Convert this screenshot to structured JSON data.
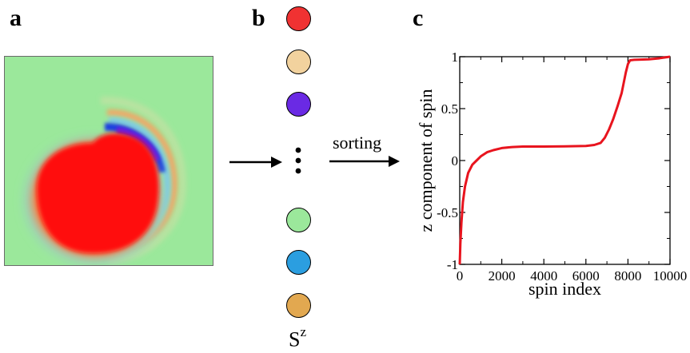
{
  "labels": {
    "a": "a",
    "b": "b",
    "c": "c"
  },
  "middle": {
    "sorting": "sorting",
    "spin_label_base": "S",
    "spin_label_sup": "z",
    "spins": [
      {
        "color": "#f03232"
      },
      {
        "color": "#f2d29e"
      },
      {
        "color": "#6a2ae4"
      },
      {
        "color": "#9be89b"
      },
      {
        "color": "#2b9ee0"
      },
      {
        "color": "#e2a850"
      }
    ]
  },
  "colors": {
    "line": "#e8141e",
    "map_background": "#9be89b"
  },
  "chart_data": {
    "type": "line",
    "title": "",
    "xlabel": "spin index",
    "ylabel": "z component of spin",
    "xlim": [
      0,
      10000
    ],
    "ylim": [
      -1,
      1
    ],
    "xticks": [
      0,
      2000,
      4000,
      6000,
      8000,
      10000
    ],
    "xtick_labels": [
      "0",
      "2000",
      "4000",
      "6000",
      "8000",
      "10000"
    ],
    "yticks": [
      -1,
      -0.5,
      0,
      0.5,
      1
    ],
    "ytick_labels": [
      "-1",
      "-0.5",
      "0",
      "0.5",
      "1"
    ],
    "grid": false,
    "series": [
      {
        "x": [
          0,
          30,
          80,
          150,
          250,
          400,
          600,
          800,
          1000,
          1300,
          1600,
          2000,
          2500,
          3000,
          4000,
          5000,
          6000,
          6400,
          6700,
          6900,
          7100,
          7300,
          7500,
          7700,
          7800,
          7900,
          8000,
          8100,
          8300,
          8600,
          9000,
          9500,
          10000
        ],
        "y": [
          -1,
          -0.8,
          -0.6,
          -0.4,
          -0.25,
          -0.12,
          -0.04,
          0.0,
          0.04,
          0.08,
          0.1,
          0.12,
          0.13,
          0.135,
          0.135,
          0.137,
          0.14,
          0.15,
          0.17,
          0.22,
          0.3,
          0.4,
          0.52,
          0.65,
          0.75,
          0.85,
          0.93,
          0.965,
          0.97,
          0.972,
          0.975,
          0.985,
          1.0
        ]
      }
    ]
  }
}
